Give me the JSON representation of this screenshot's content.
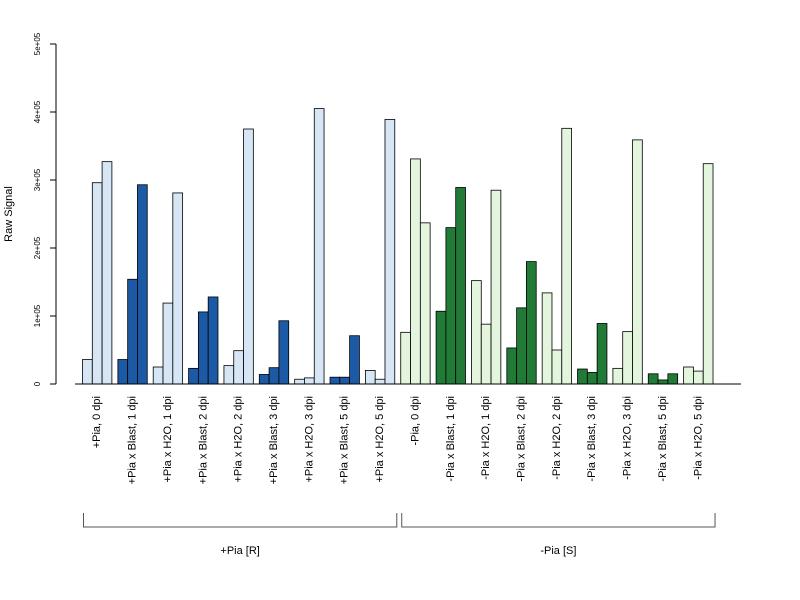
{
  "chart_data": {
    "type": "bar",
    "ylabel": "Raw Signal",
    "ylim": [
      0,
      500000
    ],
    "y_ticks": [
      {
        "value": 0,
        "label": "0"
      },
      {
        "value": 100000,
        "label": "1e+05"
      },
      {
        "value": 200000,
        "label": "2e+05"
      },
      {
        "value": 300000,
        "label": "3e+05"
      },
      {
        "value": 400000,
        "label": "4e+05"
      },
      {
        "value": 500000,
        "label": "5e+05"
      }
    ],
    "colors": {
      "pia_pos_light": "#d6e6f5",
      "pia_pos_dark": "#1d5aa5",
      "pia_neg_light": "#e3f5dc",
      "pia_neg_dark": "#217a36",
      "bar_border": "#000000",
      "axis": "#000000",
      "bracket": "#555555"
    },
    "groups": [
      {
        "label": "+Pia, 0 dpi",
        "values": [
          36000,
          296000,
          327000
        ],
        "color": "pia_pos_light"
      },
      {
        "label": "+Pia x Blast, 1 dpi",
        "values": [
          36000,
          154000,
          293000
        ],
        "color": "pia_pos_dark"
      },
      {
        "label": "+Pia x H2O, 1 dpi",
        "values": [
          25000,
          119000,
          281000
        ],
        "color": "pia_pos_light"
      },
      {
        "label": "+Pia x Blast, 2 dpi",
        "values": [
          23000,
          106000,
          128000
        ],
        "color": "pia_pos_dark"
      },
      {
        "label": "+Pia x H2O, 2 dpi",
        "values": [
          27000,
          49000,
          375000
        ],
        "color": "pia_pos_light"
      },
      {
        "label": "+Pia x Blast, 3 dpi",
        "values": [
          14000,
          24000,
          93000
        ],
        "color": "pia_pos_dark"
      },
      {
        "label": "+Pia x H2O, 3 dpi",
        "values": [
          7000,
          9000,
          405000
        ],
        "color": "pia_pos_light"
      },
      {
        "label": "+Pia x Blast, 5 dpi",
        "values": [
          10000,
          10000,
          71000
        ],
        "color": "pia_pos_dark"
      },
      {
        "label": "+Pia x H2O, 5 dpi",
        "values": [
          20000,
          7000,
          389000
        ],
        "color": "pia_pos_light"
      },
      {
        "label": "-Pia, 0 dpi",
        "values": [
          76000,
          331000,
          237000
        ],
        "color": "pia_neg_light"
      },
      {
        "label": "-Pia x Blast, 1 dpi",
        "values": [
          107000,
          230000,
          289000
        ],
        "color": "pia_neg_dark"
      },
      {
        "label": "-Pia x H2O, 1 dpi",
        "values": [
          152000,
          88000,
          285000
        ],
        "color": "pia_neg_light"
      },
      {
        "label": "-Pia x Blast, 2 dpi",
        "values": [
          53000,
          112000,
          180000
        ],
        "color": "pia_neg_dark"
      },
      {
        "label": "-Pia x H2O, 2 dpi",
        "values": [
          134000,
          50000,
          376000
        ],
        "color": "pia_neg_light"
      },
      {
        "label": "-Pia x Blast, 3 dpi",
        "values": [
          22000,
          17000,
          89000
        ],
        "color": "pia_neg_dark"
      },
      {
        "label": "-Pia x H2O, 3 dpi",
        "values": [
          23000,
          77000,
          359000
        ],
        "color": "pia_neg_light"
      },
      {
        "label": "-Pia x Blast, 5 dpi",
        "values": [
          15000,
          6000,
          15000
        ],
        "color": "pia_neg_dark"
      },
      {
        "label": "-Pia x H2O, 5 dpi",
        "values": [
          25000,
          19000,
          324000
        ],
        "color": "pia_neg_light"
      }
    ],
    "brackets": [
      {
        "label": "+Pia [R]",
        "from_group": 0,
        "to_group": 8
      },
      {
        "label": "-Pia [S]",
        "from_group": 9,
        "to_group": 17
      }
    ]
  }
}
